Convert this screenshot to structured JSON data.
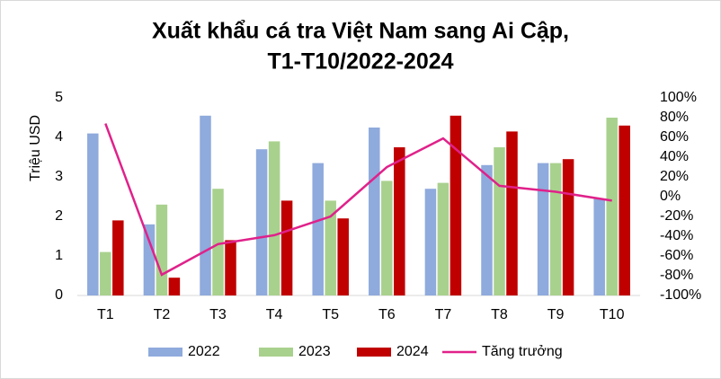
{
  "chart_data": {
    "type": "bar",
    "title": [
      "Xuất khẩu cá tra Việt Nam sang Ai Cập,",
      "T1-T10/2022-2024"
    ],
    "y_label": "Triệu USD",
    "categories": [
      "T1",
      "T2",
      "T3",
      "T4",
      "T5",
      "T6",
      "T7",
      "T8",
      "T9",
      "T10"
    ],
    "series": [
      {
        "name": "2022",
        "color": "#8faadc",
        "values": [
          4.1,
          1.8,
          4.55,
          3.7,
          3.35,
          4.25,
          2.7,
          3.3,
          3.35,
          2.45
        ]
      },
      {
        "name": "2023",
        "color": "#a9d18e",
        "values": [
          1.1,
          2.3,
          2.7,
          3.9,
          2.4,
          2.9,
          2.85,
          3.75,
          3.35,
          4.5
        ]
      },
      {
        "name": "2024",
        "color": "#c00000",
        "values": [
          1.9,
          0.45,
          1.4,
          2.4,
          1.95,
          3.75,
          4.55,
          4.15,
          3.45,
          4.3
        ]
      },
      {
        "name": "Tăng trưởng",
        "color": "#e0218a",
        "type": "line",
        "axis": "y2",
        "values": [
          74,
          -79,
          -48,
          -39,
          -20,
          30,
          59,
          11,
          5,
          -4
        ]
      }
    ],
    "ylim": [
      0,
      5
    ],
    "yticks": [
      0,
      1,
      2,
      3,
      4,
      5
    ],
    "y2lim": [
      -100,
      100
    ],
    "y2ticks": [
      {
        "value": -100,
        "label": "-100%"
      },
      {
        "value": -80,
        "label": "-80%"
      },
      {
        "value": -60,
        "label": "-60%"
      },
      {
        "value": -40,
        "label": "-40%"
      },
      {
        "value": -20,
        "label": "-20%"
      },
      {
        "value": 0,
        "label": "0%"
      },
      {
        "value": 20,
        "label": "20%"
      },
      {
        "value": 40,
        "label": "40%"
      },
      {
        "value": 60,
        "label": "60%"
      },
      {
        "value": 80,
        "label": "80%"
      },
      {
        "value": 100,
        "label": "100%"
      }
    ],
    "legend": "bottom"
  }
}
